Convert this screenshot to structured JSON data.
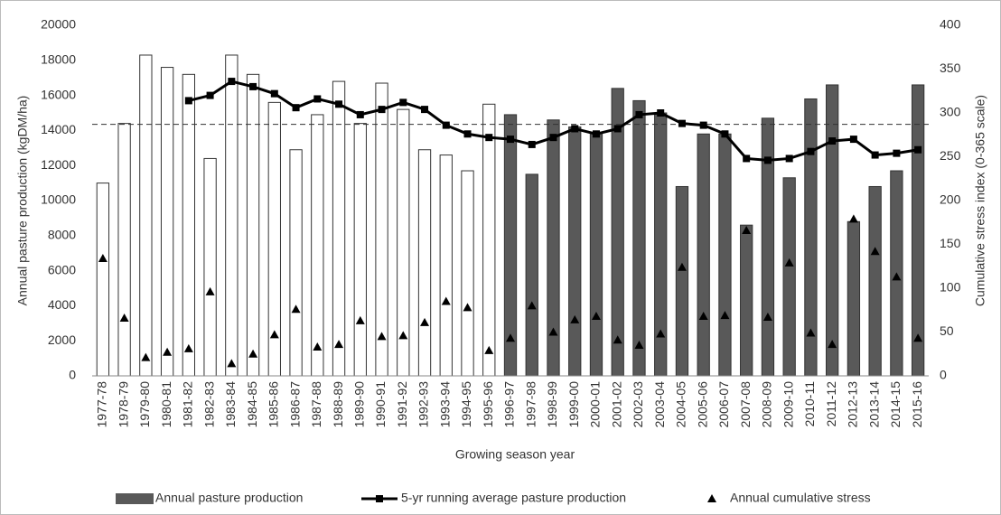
{
  "chart_data": {
    "type": "combo",
    "x_label": "Growing season year",
    "y_label": "Annual pasture production (kgDM/ha)",
    "y2_label": "Cumulative stress index (0-365 scale)",
    "categories": [
      "1977-78",
      "1978-79",
      "1979-80",
      "1980-81",
      "1981-82",
      "1982-83",
      "1983-84",
      "1984-85",
      "1985-86",
      "1986-87",
      "1987-88",
      "1988-89",
      "1989-90",
      "1990-91",
      "1991-92",
      "1992-93",
      "1993-94",
      "1994-95",
      "1995-96",
      "1996-97",
      "1997-98",
      "1998-99",
      "1999-00",
      "2000-01",
      "2001-02",
      "2002-03",
      "2003-04",
      "2004-05",
      "2005-06",
      "2006-07",
      "2007-08",
      "2008-09",
      "2009-10",
      "2010-11",
      "2011-12",
      "2012-13",
      "2013-14",
      "2014-15",
      "2015-16"
    ],
    "series": [
      {
        "name": "Annual pasture production",
        "type": "bar",
        "color": "#595959",
        "colors": [
          "#ffffff",
          "#ffffff",
          "#ffffff",
          "#ffffff",
          "#ffffff",
          "#ffffff",
          "#ffffff",
          "#ffffff",
          "#ffffff",
          "#ffffff",
          "#ffffff",
          "#ffffff",
          "#ffffff",
          "#ffffff",
          "#ffffff",
          "#ffffff",
          "#ffffff",
          "#ffffff",
          "#ffffff",
          "#595959",
          "#595959",
          "#595959",
          "#595959",
          "#595959",
          "#595959",
          "#595959",
          "#595959",
          "#595959",
          "#595959",
          "#595959",
          "#595959",
          "#595959",
          "#595959",
          "#595959",
          "#595959",
          "#595959",
          "#595959",
          "#595959",
          "#595959"
        ],
        "values": [
          11000,
          14400,
          18300,
          17600,
          17200,
          12400,
          18300,
          17200,
          15600,
          12900,
          14900,
          16800,
          14400,
          16700,
          15200,
          12900,
          12600,
          11700,
          15500,
          14900,
          11500,
          14600,
          14200,
          13900,
          16400,
          15700,
          15000,
          10800,
          13800,
          13800,
          8600,
          14700,
          11300,
          15800,
          16600,
          8800,
          10800,
          11700,
          16600
        ]
      },
      {
        "name": "5-yr running average pasture production",
        "type": "line",
        "color": "#000000",
        "values": [
          null,
          null,
          null,
          null,
          15700,
          16000,
          16800,
          16500,
          16100,
          15300,
          15800,
          15500,
          14900,
          15200,
          15600,
          15200,
          14300,
          13800,
          13600,
          13500,
          13200,
          13600,
          14100,
          13800,
          14100,
          14900,
          15000,
          14400,
          14300,
          13800,
          12400,
          12300,
          12400,
          12800,
          13400,
          13500,
          12600,
          12700,
          12900
        ]
      },
      {
        "name": "Annual cumulative stress",
        "type": "scatter",
        "axis": "y2",
        "color": "#000000",
        "values": [
          134,
          66,
          21,
          27,
          31,
          96,
          14,
          25,
          47,
          76,
          33,
          36,
          63,
          45,
          46,
          61,
          85,
          78,
          29,
          43,
          80,
          50,
          64,
          68,
          41,
          35,
          48,
          124,
          68,
          69,
          166,
          67,
          129,
          49,
          36,
          179,
          142,
          113,
          43
        ]
      }
    ],
    "reference_line": 14350,
    "ylim": [
      0,
      20000
    ],
    "yticks": [
      0,
      2000,
      4000,
      6000,
      8000,
      10000,
      12000,
      14000,
      16000,
      18000,
      20000
    ],
    "y2lim": [
      0,
      400
    ],
    "y2ticks": [
      0,
      50,
      100,
      150,
      200,
      250,
      300,
      350,
      400
    ],
    "legend": "bottom"
  }
}
